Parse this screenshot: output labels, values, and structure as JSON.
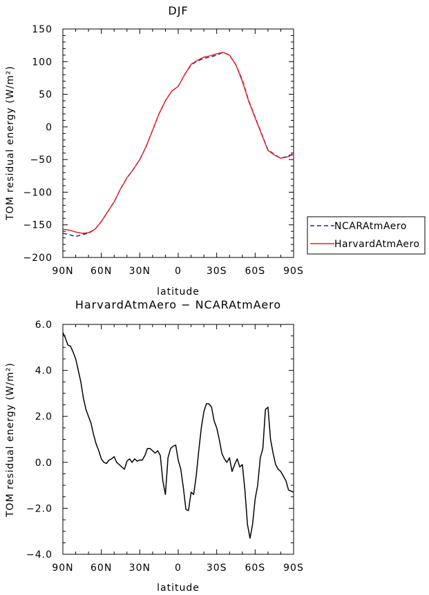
{
  "chart_data": [
    {
      "type": "line",
      "title": "DJF",
      "xlabel": "latitude",
      "ylabel": "TOM residual energy (W/m²)",
      "xlim": [
        90,
        -90
      ],
      "ylim": [
        -200,
        150
      ],
      "x_ticks": [
        {
          "value": 90,
          "label": "90N"
        },
        {
          "value": 60,
          "label": "60N"
        },
        {
          "value": 30,
          "label": "30N"
        },
        {
          "value": 0,
          "label": "0"
        },
        {
          "value": -30,
          "label": "30S"
        },
        {
          "value": -60,
          "label": "60S"
        },
        {
          "value": -90,
          "label": "90S"
        }
      ],
      "y_ticks": [
        {
          "value": 150,
          "label": "150"
        },
        {
          "value": 100,
          "label": "100"
        },
        {
          "value": 50,
          "label": "50"
        },
        {
          "value": 0,
          "label": "0"
        },
        {
          "value": -50,
          "label": "−50"
        },
        {
          "value": -100,
          "label": "−100"
        },
        {
          "value": -150,
          "label": "−150"
        },
        {
          "value": -200,
          "label": "−200"
        }
      ],
      "legend_position": "right",
      "series": [
        {
          "name": "NCARAtmAero",
          "color": "#1c1cc8",
          "style": "dashed",
          "x": [
            90,
            85,
            80,
            75,
            70,
            65,
            60,
            55,
            50,
            45,
            40,
            35,
            30,
            25,
            20,
            15,
            10,
            5,
            0,
            -5,
            -10,
            -15,
            -20,
            -25,
            -30,
            -35,
            -40,
            -45,
            -50,
            -55,
            -60,
            -65,
            -70,
            -75,
            -80,
            -85,
            -90
          ],
          "y": [
            -163,
            -165,
            -168,
            -165,
            -163,
            -157,
            -145,
            -130,
            -115,
            -95,
            -78,
            -65,
            -50,
            -30,
            -5,
            20,
            40,
            55,
            62,
            80,
            95,
            101,
            105,
            107,
            110,
            114,
            110,
            95,
            72,
            40,
            15,
            -10,
            -35,
            -42,
            -48,
            -45,
            -41
          ]
        },
        {
          "name": "HarvardAtmAero",
          "color": "#e8231c",
          "style": "solid",
          "x": [
            90,
            85,
            80,
            75,
            70,
            65,
            60,
            55,
            50,
            45,
            40,
            35,
            30,
            25,
            20,
            15,
            10,
            5,
            0,
            -5,
            -10,
            -15,
            -20,
            -25,
            -30,
            -35,
            -40,
            -45,
            -50,
            -55,
            -60,
            -65,
            -70,
            -75,
            -80,
            -85,
            -90
          ],
          "y": [
            -157,
            -158,
            -161,
            -163,
            -162,
            -157,
            -145,
            -130,
            -115,
            -95,
            -78,
            -65,
            -50,
            -30,
            -5,
            20,
            40,
            55,
            62,
            80,
            96,
            102,
            107,
            109,
            112,
            114,
            110,
            95,
            70,
            39,
            14,
            -11,
            -36,
            -43,
            -48,
            -46,
            -42
          ]
        }
      ]
    },
    {
      "type": "line",
      "title": "HarvardAtmAero − NCARAtmAero",
      "xlabel": "latitude",
      "ylabel": "TOM residual energy (W/m²)",
      "xlim": [
        90,
        -90
      ],
      "ylim": [
        -4,
        6
      ],
      "x_ticks": [
        {
          "value": 90,
          "label": "90N"
        },
        {
          "value": 60,
          "label": "60N"
        },
        {
          "value": 30,
          "label": "30N"
        },
        {
          "value": 0,
          "label": "0"
        },
        {
          "value": -30,
          "label": "30S"
        },
        {
          "value": -60,
          "label": "60S"
        },
        {
          "value": -90,
          "label": "90S"
        }
      ],
      "y_ticks": [
        {
          "value": 6,
          "label": "6.0"
        },
        {
          "value": 4,
          "label": "4.0"
        },
        {
          "value": 2,
          "label": "2.0"
        },
        {
          "value": 0,
          "label": "0.0"
        },
        {
          "value": -2,
          "label": "−2.0"
        },
        {
          "value": -4,
          "label": "−4.0"
        }
      ],
      "series": [
        {
          "color": "#000000",
          "style": "solid",
          "x": [
            90,
            88,
            86,
            84,
            82,
            80,
            78,
            76,
            74,
            72,
            70,
            68,
            66,
            64,
            62,
            60,
            58,
            56,
            54,
            52,
            50,
            48,
            46,
            44,
            42,
            40,
            38,
            36,
            34,
            32,
            30,
            28,
            26,
            24,
            22,
            20,
            18,
            16,
            14,
            12,
            10,
            8,
            6,
            4,
            2,
            0,
            -2,
            -4,
            -6,
            -8,
            -10,
            -12,
            -14,
            -16,
            -18,
            -20,
            -22,
            -24,
            -26,
            -28,
            -30,
            -32,
            -34,
            -36,
            -38,
            -40,
            -42,
            -44,
            -46,
            -48,
            -50,
            -52,
            -54,
            -56,
            -58,
            -60,
            -62,
            -64,
            -66,
            -68,
            -70,
            -72,
            -74,
            -76,
            -78,
            -80,
            -82,
            -84,
            -86,
            -88,
            -90
          ],
          "y": [
            5.65,
            5.4,
            5.1,
            5.05,
            4.8,
            4.5,
            4.0,
            3.5,
            2.8,
            2.3,
            2.0,
            1.7,
            1.2,
            0.8,
            0.5,
            0.15,
            0.0,
            -0.05,
            0.1,
            0.15,
            0.25,
            0.0,
            -0.1,
            -0.2,
            -0.3,
            0.05,
            0.15,
            0.0,
            0.15,
            0.05,
            0.1,
            0.1,
            0.3,
            0.6,
            0.6,
            0.5,
            0.4,
            0.5,
            0.3,
            -0.8,
            -1.4,
            0.2,
            0.6,
            0.7,
            0.75,
            0.1,
            -0.3,
            -1.1,
            -2.05,
            -2.1,
            -1.3,
            -1.4,
            -0.6,
            0.5,
            1.5,
            2.2,
            2.55,
            2.55,
            2.4,
            1.8,
            1.5,
            1.0,
            0.4,
            0.15,
            0.0,
            0.2,
            -0.4,
            -0.1,
            0.15,
            -0.2,
            -0.1,
            -1.2,
            -2.7,
            -3.3,
            -2.7,
            -1.6,
            -1.0,
            0.2,
            0.6,
            2.3,
            2.4,
            1.0,
            0.4,
            -0.1,
            -0.3,
            -0.4,
            -0.6,
            -0.8,
            -1.2,
            -1.25,
            -1.3
          ]
        }
      ]
    }
  ]
}
